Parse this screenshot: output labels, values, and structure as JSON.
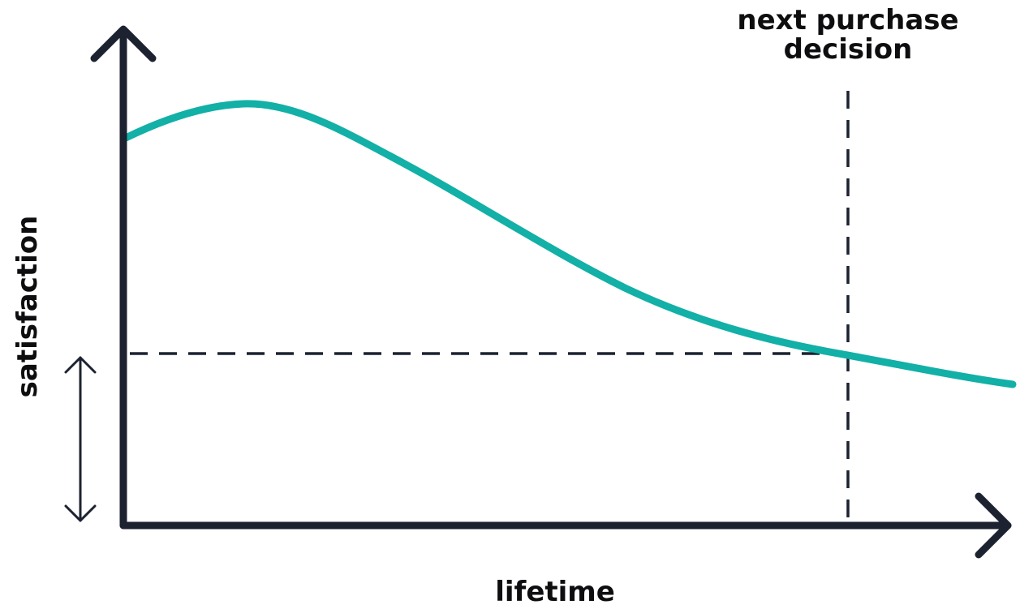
{
  "labels": {
    "y_axis": "satisfaction",
    "x_axis": "lifetime",
    "annotation_line1": "next purchase",
    "annotation_line2": "decision"
  },
  "colors": {
    "curve": "#12b0a6",
    "ink": "#1c2230"
  }
}
